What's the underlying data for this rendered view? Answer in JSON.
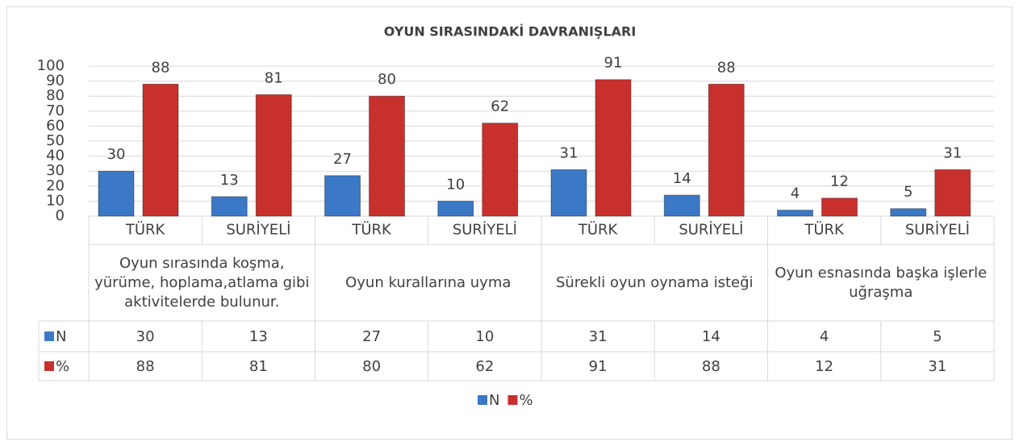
{
  "chart_data": {
    "type": "bar",
    "title": "OYUN SIRASINDAKİ DAVRANIŞLARI",
    "categories": [
      "TÜRK",
      "SURİYELİ",
      "TÜRK",
      "SURİYELİ",
      "TÜRK",
      "SURİYELİ",
      "TÜRK",
      "SURİYELİ"
    ],
    "groups": [
      "Oyun sırasında koşma, yürüme, hoplama,atlama gibi aktivitelerde bulunur.",
      "Oyun kurallarına uyma",
      "Sürekli oyun oynama isteği",
      "Oyun esnasında başka işlerle uğraşma"
    ],
    "series": [
      {
        "name": "N",
        "color": "#3b78c6",
        "values": [
          30,
          13,
          27,
          10,
          31,
          14,
          4,
          5
        ]
      },
      {
        "name": "%",
        "color": "#c8302d",
        "values": [
          88,
          81,
          80,
          62,
          91,
          88,
          12,
          31
        ]
      }
    ],
    "ylim": [
      0,
      100
    ],
    "yticks": [
      0,
      10,
      20,
      30,
      40,
      50,
      60,
      70,
      80,
      90,
      100
    ],
    "grid": true,
    "legend": "bottom"
  }
}
